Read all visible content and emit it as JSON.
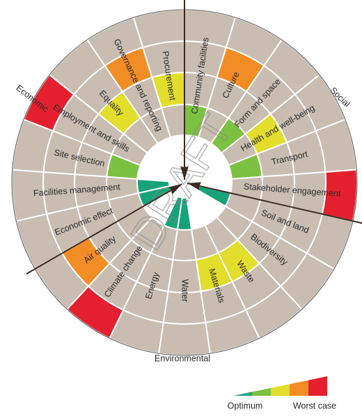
{
  "watermark": "DRAFT",
  "sections": [
    {
      "label": "Social"
    },
    {
      "label": "Environmental"
    },
    {
      "label": "Economic"
    }
  ],
  "segments": [
    {
      "label": "Community facilities",
      "level": 2
    },
    {
      "label": "Culture",
      "level": 4
    },
    {
      "label": "Form and space",
      "level": 2
    },
    {
      "label": "Health and well-being",
      "level": 3
    },
    {
      "label": "Transport",
      "level": 2
    },
    {
      "label": "Stakeholder engagement",
      "level": 5
    },
    {
      "label": "Soil and land",
      "level": 1
    },
    {
      "label": "Biodiversity",
      "level": null
    },
    {
      "label": "Waste",
      "level": 3
    },
    {
      "label": "Materials",
      "level": 3
    },
    {
      "label": "Water",
      "level": 1
    },
    {
      "label": "Energy",
      "level": 1
    },
    {
      "label": "Climate change",
      "level": 5
    },
    {
      "label": "Air quality",
      "level": 4
    },
    {
      "label": "Economic effect",
      "level": 1
    },
    {
      "label": "Facilities management",
      "level": 1
    },
    {
      "label": "Site selection",
      "level": 2
    },
    {
      "label": "Employment and skills",
      "level": 5
    },
    {
      "label": "Equality",
      "level": 3
    },
    {
      "label": "Governance and reporting",
      "level": 4
    },
    {
      "label": "Procurement",
      "level": 3
    }
  ],
  "level_colors": [
    "#17a279",
    "#7cc142",
    "#e3dd2c",
    "#f28d26",
    "#e5202e"
  ],
  "legend": {
    "low": "Optimum",
    "high": "Worst case"
  }
}
